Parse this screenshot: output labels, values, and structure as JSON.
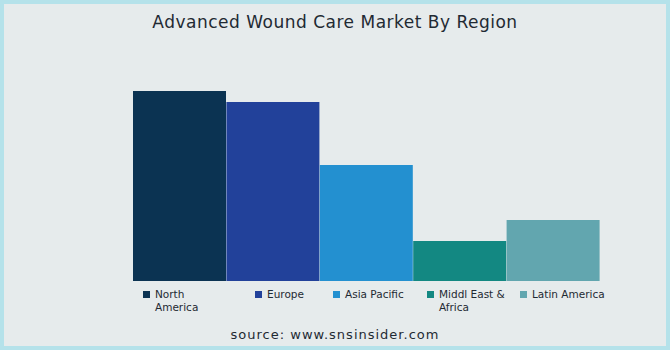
{
  "chart_data": {
    "type": "bar",
    "title": "Advanced Wound Care Market By Region",
    "categories": [
      "North America",
      "Europe",
      "Asia Pacific",
      "Middl East & Africa",
      "Latin America"
    ],
    "values": [
      190,
      179,
      116,
      40,
      61
    ],
    "colors": [
      "#0b3352",
      "#22419a",
      "#2390d0",
      "#138882",
      "#62a6af"
    ],
    "ylim": [
      0,
      200
    ],
    "tick_labels": false,
    "legend": "bottom",
    "source": "source: www.snsinsider.com"
  }
}
